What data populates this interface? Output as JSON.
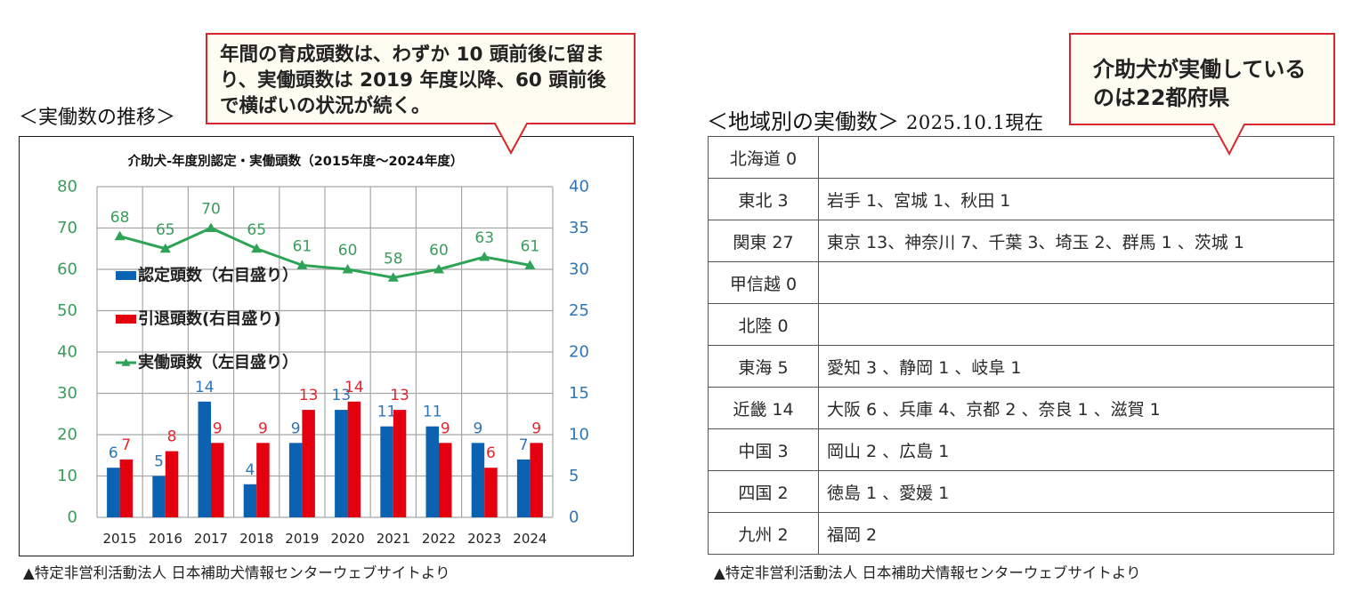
{
  "left_panel": {
    "heading": "＜実働数の推移＞",
    "callout_lines": [
      "年間の育成頭数は、わずか 10 頭前後に留ま",
      "り、実働頭数は 2019 年度以降、60 頭前後",
      "で横ばいの状況が続く。"
    ],
    "source_note": "▲特定非営利活動法人 日本補助犬情報センターウェブサイトより"
  },
  "right_panel": {
    "heading": "＜地域別の実働数＞",
    "as_of": "2025.10.1現在",
    "callout_lines": [
      "介助犬が実働している",
      "のは22都府県"
    ],
    "table_rows": [
      {
        "region": "北海道 0",
        "prefectures": ""
      },
      {
        "region": "東北 3",
        "prefectures": "岩手 1、宮城 1、秋田 1"
      },
      {
        "region": "関東 27",
        "prefectures": "東京 13、神奈川 7、千葉 3、埼玉 2、群馬 1 、茨城 1"
      },
      {
        "region": "甲信越 0",
        "prefectures": ""
      },
      {
        "region": "北陸 0",
        "prefectures": ""
      },
      {
        "region": "東海 5",
        "prefectures": "愛知 3 、静岡 1 、岐阜 1"
      },
      {
        "region": "近畿 14",
        "prefectures": "大阪 6 、兵庫 4、京都 2 、奈良 1 、滋賀 1"
      },
      {
        "region": "中国 3",
        "prefectures": "岡山 2 、広島 1"
      },
      {
        "region": "四国 2",
        "prefectures": "徳島 1 、愛媛 1"
      },
      {
        "region": "九州 2",
        "prefectures": "福岡 2"
      }
    ],
    "source_note": "▲特定非営利活動法人 日本補助犬情報センターウェブサイトより"
  },
  "colors": {
    "callout_border": "#d7262d",
    "callout_fill": "#fffdf2"
  },
  "chart_data": {
    "type": "bar",
    "title": "介助犬-年度別認定・実働頭数（2015年度～2024年度）",
    "xlabel": "",
    "categories": [
      "2015",
      "2016",
      "2017",
      "2018",
      "2019",
      "2020",
      "2021",
      "2022",
      "2023",
      "2024"
    ],
    "series": [
      {
        "name": "認定頭数（右目盛り）",
        "type": "bar",
        "axis": "right",
        "values": [
          6,
          5,
          14,
          4,
          9,
          13,
          11,
          11,
          9,
          7
        ],
        "color": "#0b61b2",
        "label_color": "#2e75b6"
      },
      {
        "name": "引退頭数(右目盛り)",
        "type": "bar",
        "axis": "right",
        "values": [
          7,
          8,
          9,
          9,
          13,
          14,
          13,
          9,
          6,
          9
        ],
        "color": "#e3000f",
        "label_color": "#e0262e"
      },
      {
        "name": "実働頭数（左目盛り）",
        "type": "line",
        "axis": "left",
        "marker": "triangle",
        "values": [
          68,
          65,
          70,
          65,
          61,
          60,
          58,
          60,
          63,
          61
        ],
        "color": "#2ea356",
        "label_color": "#3a9b5c"
      }
    ],
    "y_left": {
      "range": [
        0,
        80
      ],
      "ticks": [
        0,
        10,
        20,
        30,
        40,
        50,
        60,
        70,
        80
      ],
      "color": "#3a9b5c"
    },
    "y_right": {
      "range": [
        0,
        40
      ],
      "ticks": [
        0,
        5,
        10,
        15,
        20,
        25,
        30,
        35,
        40
      ],
      "color": "#2e75b6"
    },
    "grid": true,
    "grid_color": "#a6a6a6",
    "legend_position": "inside-left"
  }
}
